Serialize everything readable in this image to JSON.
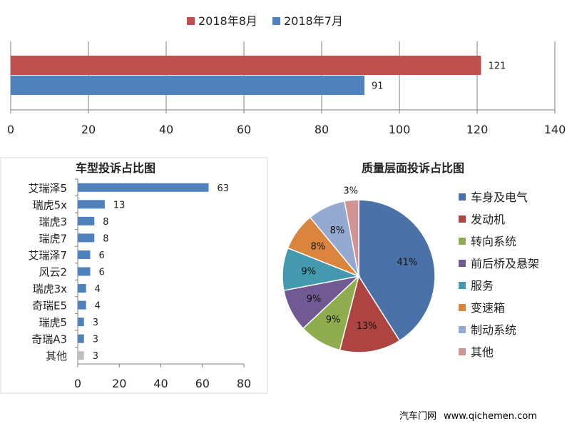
{
  "footer": {
    "site_name": "汽车门网",
    "url": "www.qichemen.com"
  },
  "chart_data": [
    {
      "type": "bar",
      "orientation": "horizontal",
      "series": [
        {
          "name": "2018年8月",
          "values": [
            121
          ],
          "color": "#C0504D"
        },
        {
          "name": "2018年7月",
          "values": [
            91
          ],
          "color": "#4F81BD"
        }
      ],
      "xlim": [
        0,
        140
      ],
      "xticks": [
        0,
        20,
        40,
        60,
        80,
        100,
        120,
        140
      ],
      "legend": "top",
      "grid": true
    },
    {
      "type": "bar",
      "orientation": "horizontal",
      "title": "车型投诉占比图",
      "categories": [
        "艾瑞泽5",
        "瑞虎5x",
        "瑞虎3",
        "瑞虎7",
        "艾瑞泽7",
        "风云2",
        "瑞虎3x",
        "奇瑞E5",
        "瑞虎5",
        "奇瑞A3",
        "其他"
      ],
      "values": [
        63,
        13,
        8,
        8,
        6,
        6,
        4,
        4,
        3,
        3,
        3
      ],
      "colors": [
        "#4F81BD",
        "#4F81BD",
        "#4F81BD",
        "#4F81BD",
        "#4F81BD",
        "#4F81BD",
        "#4F81BD",
        "#4F81BD",
        "#4F81BD",
        "#4F81BD",
        "#BFBFBF"
      ],
      "xlim": [
        0,
        80
      ],
      "xticks": [
        0,
        20,
        40,
        60,
        80
      ],
      "grid": false
    },
    {
      "type": "pie",
      "title": "质量层面投诉占比图",
      "labels": [
        "车身及电气",
        "发动机",
        "转向系统",
        "前后桥及悬架",
        "服务",
        "变速箱",
        "制动系统",
        "其他"
      ],
      "values": [
        41,
        13,
        9,
        9,
        9,
        8,
        8,
        3
      ],
      "label_text": [
        "41%",
        "13%",
        "9%",
        "9%",
        "9%",
        "8%",
        "8%",
        "3%"
      ],
      "colors": [
        "#4A72A8",
        "#AD4441",
        "#8FAD4E",
        "#715A94",
        "#4499AE",
        "#DB843D",
        "#93A9CF",
        "#D09592"
      ],
      "legend": "right"
    }
  ]
}
